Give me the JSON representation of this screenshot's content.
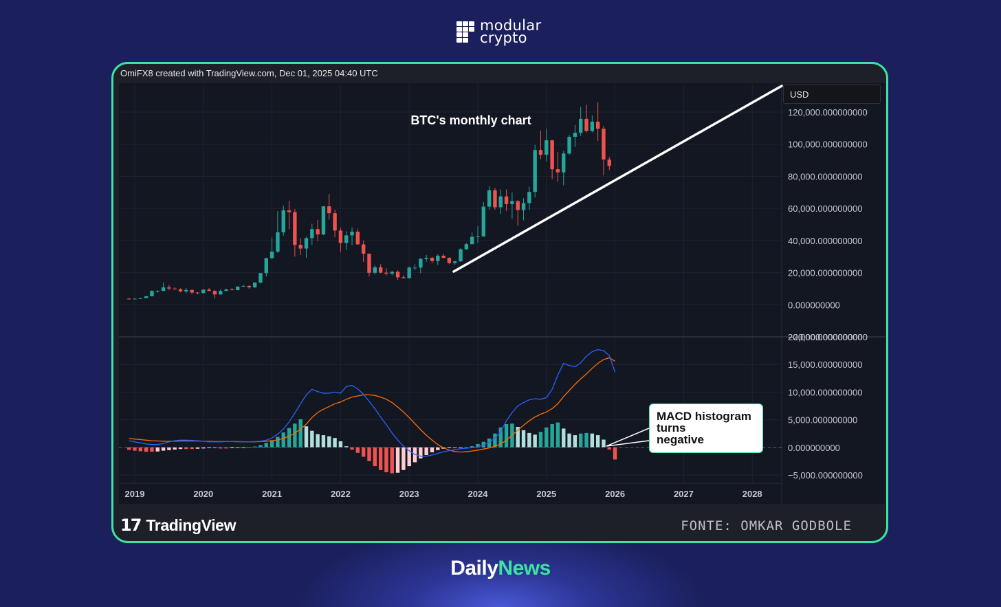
{
  "brand": {
    "line1": "modular",
    "line2": "crypto"
  },
  "attribution": "OmiFX8 created with TradingView.com, Dec 01, 2025 04:40 UTC",
  "currency": "USD",
  "footer": {
    "logo_mark": "17",
    "logo_text": "TradingView",
    "source": "FONTE: OMKAR GODBOLE"
  },
  "bottom_brand": {
    "part1": "Daily",
    "part2": "News"
  },
  "colors": {
    "bull": "#26a69a",
    "bear": "#ef5350",
    "bull_light": "#b2dfdb",
    "bear_light": "#ffcdd2",
    "macd": "#2962ff",
    "signal": "#ff6d00",
    "accent": "#3ee3a2"
  },
  "chart_data": {
    "type": "candlestick",
    "title": "BTC's monthly chart",
    "x_axis": {
      "ticks": [
        "2019",
        "2020",
        "2021",
        "2022",
        "2023",
        "2024",
        "2025",
        "2026",
        "2027",
        "2028"
      ],
      "range": [
        2019,
        2028.5
      ]
    },
    "price_axis": {
      "ticks": [
        "120,000.000000000",
        "100,000.000000000",
        "80,000.000000000",
        "60,000.000000000",
        "40,000.000000000",
        "20,000.000000000",
        "0.000000000",
        "−20,000.000000000"
      ],
      "range": [
        -20000,
        138000
      ]
    },
    "macd_axis": {
      "ticks": [
        "20,000.000000000",
        "15,000.000000000",
        "10,000.000000000",
        "5,000.000000000",
        "0.000000000",
        "−5,000.000000000"
      ],
      "range": [
        -6500,
        20000
      ]
    },
    "start_month": "2018-12",
    "candles": [
      [
        3800,
        3500,
        4100,
        3200
      ],
      [
        3500,
        3800,
        3900,
        3400
      ],
      [
        3800,
        4100,
        4200,
        3700
      ],
      [
        4100,
        5300,
        5400,
        4000
      ],
      [
        5300,
        8600,
        9000,
        5200
      ],
      [
        8600,
        8600,
        9100,
        7500
      ],
      [
        8600,
        10800,
        13800,
        8400
      ],
      [
        10800,
        10100,
        12300,
        9000
      ],
      [
        10100,
        9600,
        10900,
        9400
      ],
      [
        9600,
        8300,
        10300,
        7800
      ],
      [
        8300,
        9200,
        10400,
        7300
      ],
      [
        9200,
        7600,
        9500,
        6500
      ],
      [
        7600,
        7200,
        7800,
        6400
      ],
      [
        7200,
        9400,
        9600,
        6900
      ],
      [
        9400,
        8600,
        10500,
        8400
      ],
      [
        8600,
        6400,
        9200,
        3800
      ],
      [
        6400,
        8600,
        9500,
        6200
      ],
      [
        8600,
        9500,
        10000,
        8500
      ],
      [
        9500,
        9100,
        10400,
        8900
      ],
      [
        9100,
        11300,
        11400,
        9000
      ],
      [
        11300,
        11700,
        12500,
        11200
      ],
      [
        11700,
        10800,
        12100,
        10000
      ],
      [
        10800,
        13800,
        14000,
        10500
      ],
      [
        13800,
        19700,
        19900,
        13200
      ],
      [
        19700,
        29000,
        29300,
        17600
      ],
      [
        29000,
        33100,
        41900,
        28700
      ],
      [
        33100,
        45100,
        58300,
        32300
      ],
      [
        45100,
        58800,
        61800,
        43000
      ],
      [
        58800,
        57700,
        64800,
        47000
      ],
      [
        57700,
        37300,
        59600,
        30000
      ],
      [
        37300,
        35000,
        41300,
        31000
      ],
      [
        35000,
        41500,
        42400,
        29300
      ],
      [
        41500,
        47100,
        50500,
        37300
      ],
      [
        47100,
        43800,
        52900,
        39600
      ],
      [
        43800,
        61300,
        61300,
        43300
      ],
      [
        61300,
        57000,
        69000,
        53000
      ],
      [
        57000,
        46200,
        59200,
        42000
      ],
      [
        46200,
        38500,
        47900,
        33000
      ],
      [
        38500,
        43200,
        45800,
        34300
      ],
      [
        43200,
        45500,
        48200,
        37200
      ],
      [
        45500,
        37600,
        47400,
        37400
      ],
      [
        37600,
        31800,
        40000,
        26700
      ],
      [
        31800,
        19900,
        31900,
        17600
      ],
      [
        19900,
        23300,
        24600,
        18800
      ],
      [
        23300,
        20000,
        25200,
        19600
      ],
      [
        20000,
        19400,
        22700,
        18200
      ],
      [
        19400,
        20500,
        21000,
        18300
      ],
      [
        20500,
        17100,
        21400,
        15500
      ],
      [
        17100,
        16500,
        18400,
        16300
      ],
      [
        16500,
        23100,
        23900,
        16500
      ],
      [
        23100,
        23100,
        25200,
        21400
      ],
      [
        23100,
        28500,
        29200,
        19600
      ],
      [
        28500,
        29200,
        31000,
        26900
      ],
      [
        29200,
        27200,
        29800,
        25800
      ],
      [
        27200,
        30500,
        31400,
        24800
      ],
      [
        30500,
        29200,
        31800,
        28900
      ],
      [
        29200,
        26000,
        29500,
        25400
      ],
      [
        26000,
        27000,
        27500,
        24900
      ],
      [
        27000,
        34600,
        35200,
        26600
      ],
      [
        34600,
        37700,
        38400,
        34100
      ],
      [
        37700,
        42300,
        45000,
        37700
      ],
      [
        42300,
        42600,
        48900,
        38600
      ],
      [
        42600,
        61100,
        64000,
        42300
      ],
      [
        61100,
        71300,
        73800,
        59100
      ],
      [
        71300,
        60700,
        72700,
        59200
      ],
      [
        60700,
        67500,
        71900,
        56500
      ],
      [
        67500,
        62700,
        71900,
        58400
      ],
      [
        62700,
        64600,
        70000,
        53500
      ],
      [
        64600,
        59000,
        65100,
        49100
      ],
      [
        59000,
        63300,
        66400,
        52600
      ],
      [
        63300,
        70300,
        73600,
        58900
      ],
      [
        70300,
        96400,
        99600,
        66800
      ],
      [
        96400,
        93400,
        108300,
        90700
      ],
      [
        93400,
        102400,
        109600,
        89200
      ],
      [
        102400,
        84400,
        102600,
        78200
      ],
      [
        84400,
        82500,
        95000,
        76600
      ],
      [
        82500,
        94200,
        95800,
        74400
      ],
      [
        94200,
        104600,
        105800,
        93400
      ],
      [
        104600,
        107100,
        112000,
        98200
      ],
      [
        107100,
        115800,
        123200,
        105200
      ],
      [
        115800,
        108200,
        124500,
        107300
      ],
      [
        108200,
        114000,
        117900,
        107300
      ],
      [
        114000,
        109600,
        126200,
        102000
      ],
      [
        109600,
        90400,
        111300,
        80600
      ],
      [
        90400,
        86500,
        92000,
        83800
      ]
    ],
    "macd_histogram": [
      -450,
      -600,
      -700,
      -800,
      -800,
      -750,
      -600,
      -500,
      -400,
      -300,
      -300,
      -300,
      -250,
      -200,
      -150,
      -100,
      -200,
      -200,
      -150,
      -100,
      -50,
      0,
      150,
      400,
      800,
      1300,
      1900,
      2700,
      3500,
      4300,
      5100,
      3800,
      3000,
      2400,
      2200,
      2000,
      1700,
      1100,
      200,
      -400,
      -1000,
      -1700,
      -2500,
      -3400,
      -4100,
      -4500,
      -4700,
      -4600,
      -4100,
      -3400,
      -2700,
      -2000,
      -1400,
      -900,
      -500,
      -250,
      -150,
      -100,
      -50,
      50,
      200,
      600,
      1000,
      1600,
      2500,
      3600,
      4200,
      4300,
      3700,
      3100,
      2600,
      2300,
      2800,
      3600,
      4200,
      4500,
      3400,
      2500,
      2200,
      2500,
      2600,
      2500,
      2200,
      1400,
      -400,
      -2200
    ],
    "macd_line": [
      1200,
      1000,
      800,
      600,
      500,
      500,
      700,
      1000,
      1200,
      1300,
      1300,
      1250,
      1200,
      1100,
      1000,
      1000,
      1000,
      1050,
      1050,
      1000,
      1000,
      1000,
      1050,
      1100,
      1300,
      1700,
      2400,
      3300,
      4600,
      6200,
      7900,
      9500,
      10500,
      10100,
      9800,
      9800,
      10000,
      9800,
      11000,
      11200,
      10600,
      9600,
      8300,
      7000,
      5500,
      4100,
      2600,
      1300,
      200,
      -600,
      -1300,
      -1600,
      -1600,
      -1400,
      -1100,
      -800,
      -600,
      -400,
      -250,
      -150,
      -80,
      100,
      400,
      900,
      1700,
      2800,
      4800,
      6300,
      7500,
      8100,
      8600,
      8800,
      8700,
      9000,
      10500,
      13100,
      15200,
      14800,
      14600,
      15300,
      16500,
      17300,
      17700,
      17500,
      16600,
      13600
    ],
    "signal_line": [
      1600,
      1500,
      1400,
      1300,
      1200,
      1150,
      1100,
      1100,
      1100,
      1150,
      1150,
      1150,
      1150,
      1100,
      1100,
      1050,
      1050,
      1050,
      1050,
      1050,
      1000,
      1000,
      1000,
      1050,
      1100,
      1200,
      1350,
      1600,
      2000,
      2600,
      3300,
      4200,
      5400,
      6300,
      6900,
      7400,
      7900,
      8200,
      8700,
      9100,
      9300,
      9500,
      9500,
      9400,
      9100,
      8700,
      8100,
      7300,
      6400,
      5400,
      4300,
      3200,
      2200,
      1300,
      500,
      -100,
      -500,
      -750,
      -850,
      -800,
      -650,
      -500,
      -300,
      -100,
      200,
      600,
      1300,
      2200,
      3100,
      4000,
      4800,
      5500,
      6000,
      6400,
      7000,
      7900,
      9200,
      10300,
      11400,
      12400,
      13300,
      14300,
      15200,
      15900,
      16200,
      15600
    ]
  },
  "annotations": {
    "callout": [
      "MACD histogram",
      "turns",
      "negative"
    ]
  }
}
